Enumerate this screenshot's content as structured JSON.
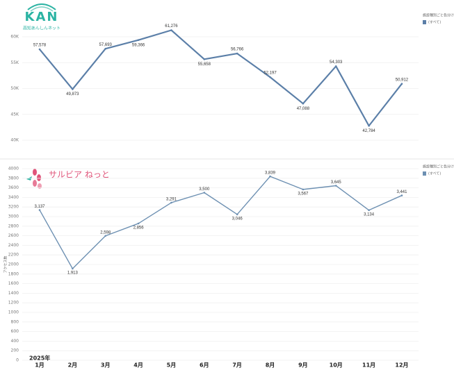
{
  "chart_data": [
    {
      "type": "line",
      "logo": "KAN",
      "logo_subtitle": "高知あんしんネット",
      "legend_title": "施設種別ごと色分け",
      "legend_item": "(すべて)",
      "values": [
        57578,
        49873,
        57693,
        59366,
        61276,
        55658,
        56766,
        52197,
        47088,
        54303,
        42784,
        50912
      ],
      "value_labels": [
        "57,578",
        "49,873",
        "57,693",
        "59,366",
        "61,276",
        "55,658",
        "56,766",
        "52,197",
        "47,088",
        "54,303",
        "42,784",
        "50,912"
      ],
      "color": "#5b7fa8",
      "ylim": [
        38000,
        63000
      ],
      "yticks": [
        {
          "value": 40000,
          "label": "40K"
        },
        {
          "value": 45000,
          "label": "45K"
        },
        {
          "value": 50000,
          "label": "50K"
        },
        {
          "value": 55000,
          "label": "55K"
        },
        {
          "value": 60000,
          "label": "60K"
        }
      ],
      "grid": true
    },
    {
      "type": "line",
      "logo": "サルビア ねっと",
      "legend_title": "施設種別ごと色分け",
      "legend_item": "(すべて)",
      "y_label": "アクセス数",
      "x_header": "2025年",
      "categories": [
        "1月",
        "2月",
        "3月",
        "4月",
        "5月",
        "6月",
        "7月",
        "8月",
        "9月",
        "10月",
        "11月",
        "12月"
      ],
      "values": [
        3137,
        1913,
        2598,
        2856,
        3291,
        3500,
        3046,
        3839,
        3567,
        3645,
        3134,
        3441
      ],
      "value_labels": [
        "3,137",
        "1,913",
        "2,598",
        "2,856",
        "3,291",
        "3,500",
        "3,046",
        "3,839",
        "3,567",
        "3,645",
        "3,134",
        "3,441"
      ],
      "color": "#6d90b2",
      "ylim": [
        0,
        4000
      ],
      "yticks": [
        0,
        200,
        400,
        600,
        800,
        1000,
        1200,
        1400,
        1600,
        1800,
        2000,
        2200,
        2400,
        2600,
        2800,
        3000,
        3200,
        3400,
        3600,
        3800,
        4000
      ],
      "grid": true
    }
  ]
}
